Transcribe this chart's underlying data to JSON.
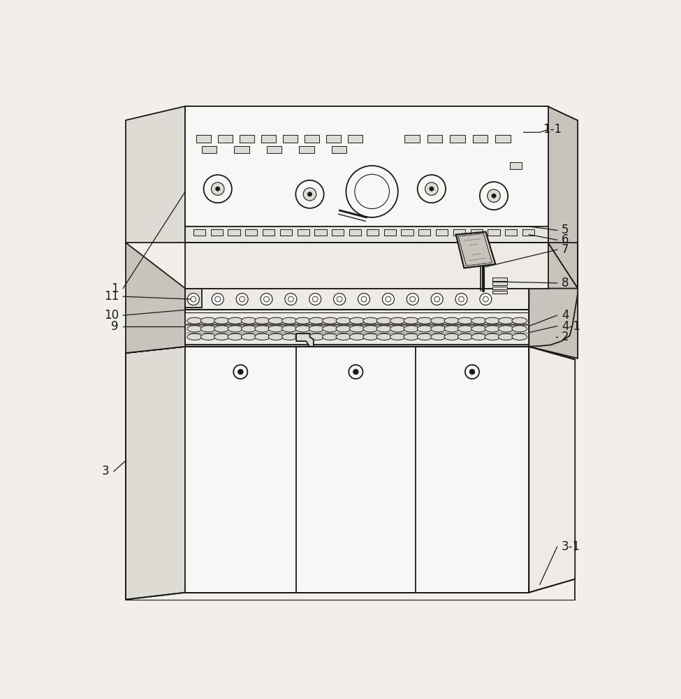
{
  "bg_color": "#f2efea",
  "line_color": "#1a1a1a",
  "lw": 1.3,
  "fill_white": "#f8f7f5",
  "fill_light": "#eeebe6",
  "fill_mid": "#dedad4",
  "fill_dark": "#c8c4bc",
  "fill_darker": "#b8b4ac",
  "fill_panel": "#e8e5e0"
}
